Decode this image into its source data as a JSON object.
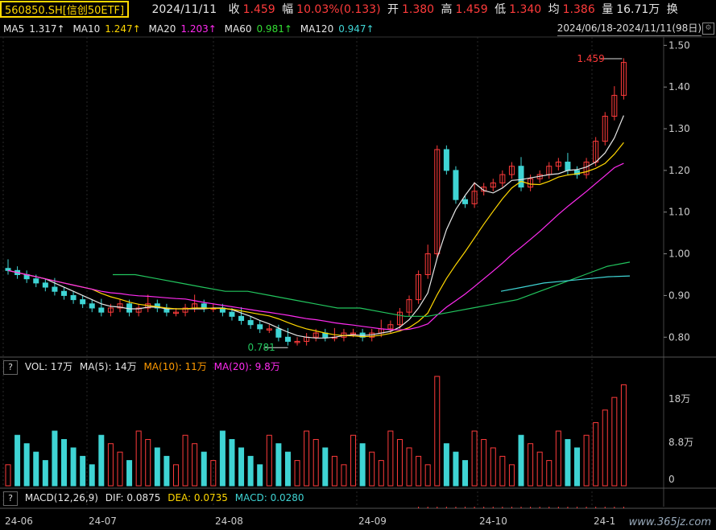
{
  "header": {
    "ticker": "560850.SH[信创50ETF]",
    "date": "2024/11/11",
    "close_label": "收",
    "close_value": "1.459",
    "change_label": "幅",
    "change_value": "10.03%(0.133)",
    "open_label": "开",
    "open_value": "1.380",
    "high_label": "高",
    "high_value": "1.459",
    "low_label": "低",
    "low_value": "1.340",
    "avg_label": "均",
    "avg_value": "1.386",
    "vol_label": "量",
    "vol_value": "16.71万",
    "more_label": "换"
  },
  "ma_row": {
    "ma5_label": "MA5",
    "ma5_value": "1.317↑",
    "ma10_label": "MA10",
    "ma10_value": "1.247↑",
    "ma20_label": "MA20",
    "ma20_value": "1.203↑",
    "ma60_label": "MA60",
    "ma60_value": "0.981↑",
    "ma120_label": "MA120",
    "ma120_value": "0.947↑",
    "range": "2024/06/18-2024/11/11(98日)"
  },
  "colors": {
    "up": "#ff3b3b",
    "down": "#3fd4d4",
    "ma5": "#e6e6e6",
    "ma10": "#ffd700",
    "ma20": "#ff2bf0",
    "ma60": "#22c55e",
    "ma120": "#3fd4d4"
  },
  "price_axis": [
    "1.50",
    "1.40",
    "1.30",
    "1.20",
    "1.10",
    "1.00",
    "0.90",
    "0.80"
  ],
  "annotations": {
    "high": "1.459",
    "low": "0.781"
  },
  "vol_header": {
    "help": "?",
    "vol": "VOL: 17万",
    "ma5": "MA(5): 14万",
    "ma10": "MA(10): 11万",
    "ma20": "MA(20): 9.8万"
  },
  "vol_axis": [
    "18万",
    "8.8万",
    "0"
  ],
  "macd_header": {
    "help": "?",
    "title": "MACD(12,26,9)",
    "dif": "DIF: 0.0875",
    "dea": "DEA: 0.0735",
    "macd": "MACD: 0.0280"
  },
  "date_axis": [
    "24-06",
    "24-07",
    "24-08",
    "24-09",
    "24-10",
    "24-1"
  ],
  "watermark": "www.365jz.com",
  "chart_data": {
    "type": "candlestick",
    "price_range": [
      0.76,
      1.52
    ],
    "close_series_approx": [
      0.96,
      0.95,
      0.94,
      0.93,
      0.92,
      0.91,
      0.9,
      0.89,
      0.88,
      0.87,
      0.86,
      0.87,
      0.88,
      0.86,
      0.87,
      0.88,
      0.87,
      0.86,
      0.86,
      0.87,
      0.88,
      0.87,
      0.87,
      0.86,
      0.85,
      0.84,
      0.83,
      0.82,
      0.82,
      0.8,
      0.79,
      0.79,
      0.8,
      0.81,
      0.8,
      0.8,
      0.81,
      0.81,
      0.8,
      0.81,
      0.82,
      0.83,
      0.86,
      0.89,
      0.95,
      1.0,
      1.25,
      1.2,
      1.13,
      1.12,
      1.15,
      1.16,
      1.17,
      1.19,
      1.21,
      1.16,
      1.18,
      1.19,
      1.21,
      1.22,
      1.2,
      1.19,
      1.22,
      1.27,
      1.33,
      1.38,
      1.459
    ],
    "ma60_approx": [
      0.95,
      0.95,
      0.94,
      0.93,
      0.92,
      0.91,
      0.91,
      0.9,
      0.89,
      0.88,
      0.87,
      0.87,
      0.86,
      0.85,
      0.85,
      0.86,
      0.87,
      0.88,
      0.89,
      0.91,
      0.93,
      0.95,
      0.97,
      0.98
    ],
    "ma120_approx": [
      0.91,
      0.92,
      0.93,
      0.935,
      0.94,
      0.945,
      0.947
    ]
  }
}
